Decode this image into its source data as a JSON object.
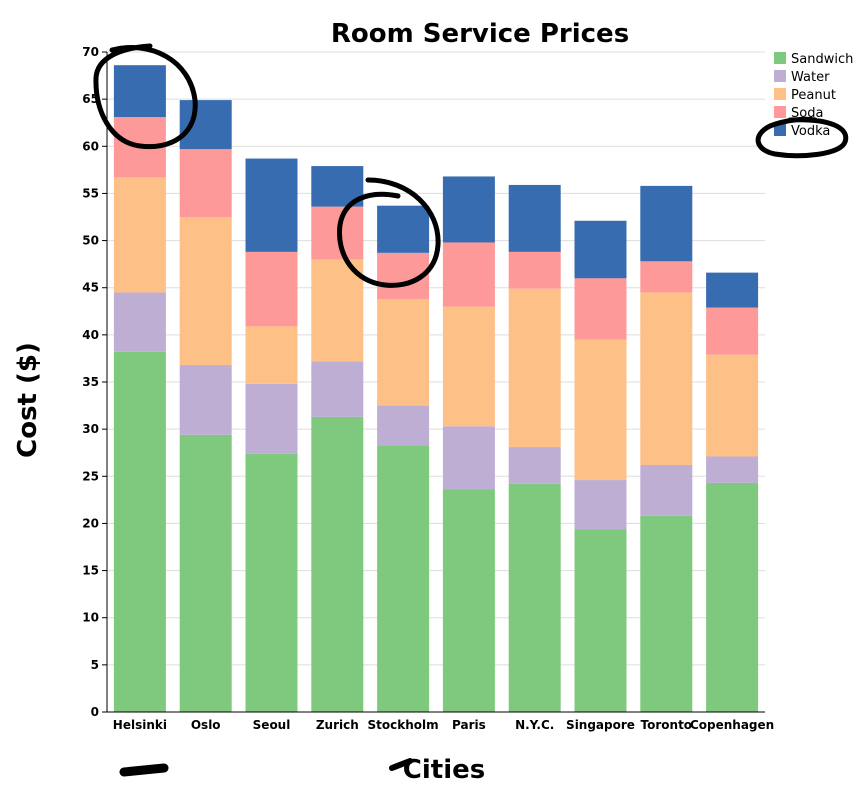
{
  "chart_data": {
    "type": "bar",
    "stacked": true,
    "title": "Room Service Prices",
    "xlabel": "Cities",
    "ylabel": "Cost ($)",
    "ylim": [
      0,
      70
    ],
    "yticks": [
      0,
      5,
      10,
      15,
      20,
      25,
      30,
      35,
      40,
      45,
      50,
      55,
      60,
      65,
      70
    ],
    "grid": "horizontal",
    "legend_position": "top-right",
    "categories": [
      "Helsinki",
      "Oslo",
      "Seoul",
      "Zurich",
      "Stockholm",
      "Paris",
      "N.Y.C.",
      "Singapore",
      "Toronto",
      "Copenhagen"
    ],
    "series": [
      {
        "name": "Sandwich",
        "color": "#7fc97f",
        "values": [
          38.2,
          29.4,
          27.4,
          31.3,
          28.3,
          23.6,
          24.2,
          19.4,
          20.8,
          24.3
        ]
      },
      {
        "name": "Water",
        "color": "#beaed4",
        "values": [
          6.3,
          7.4,
          7.4,
          5.9,
          4.2,
          6.7,
          3.9,
          5.2,
          5.4,
          2.8
        ]
      },
      {
        "name": "Peanut",
        "color": "#fdc086",
        "values": [
          12.2,
          15.7,
          6.1,
          10.8,
          11.3,
          12.7,
          16.8,
          14.9,
          18.3,
          10.8
        ]
      },
      {
        "name": "Soda",
        "color": "#fe9999",
        "values": [
          6.4,
          7.2,
          7.9,
          5.6,
          4.9,
          6.8,
          3.9,
          6.5,
          3.3,
          5.0
        ]
      },
      {
        "name": "Vodka",
        "color": "#386cb0",
        "values": [
          5.5,
          5.2,
          9.9,
          4.3,
          5.0,
          7.0,
          7.1,
          6.1,
          8.0,
          3.7
        ]
      }
    ]
  }
}
